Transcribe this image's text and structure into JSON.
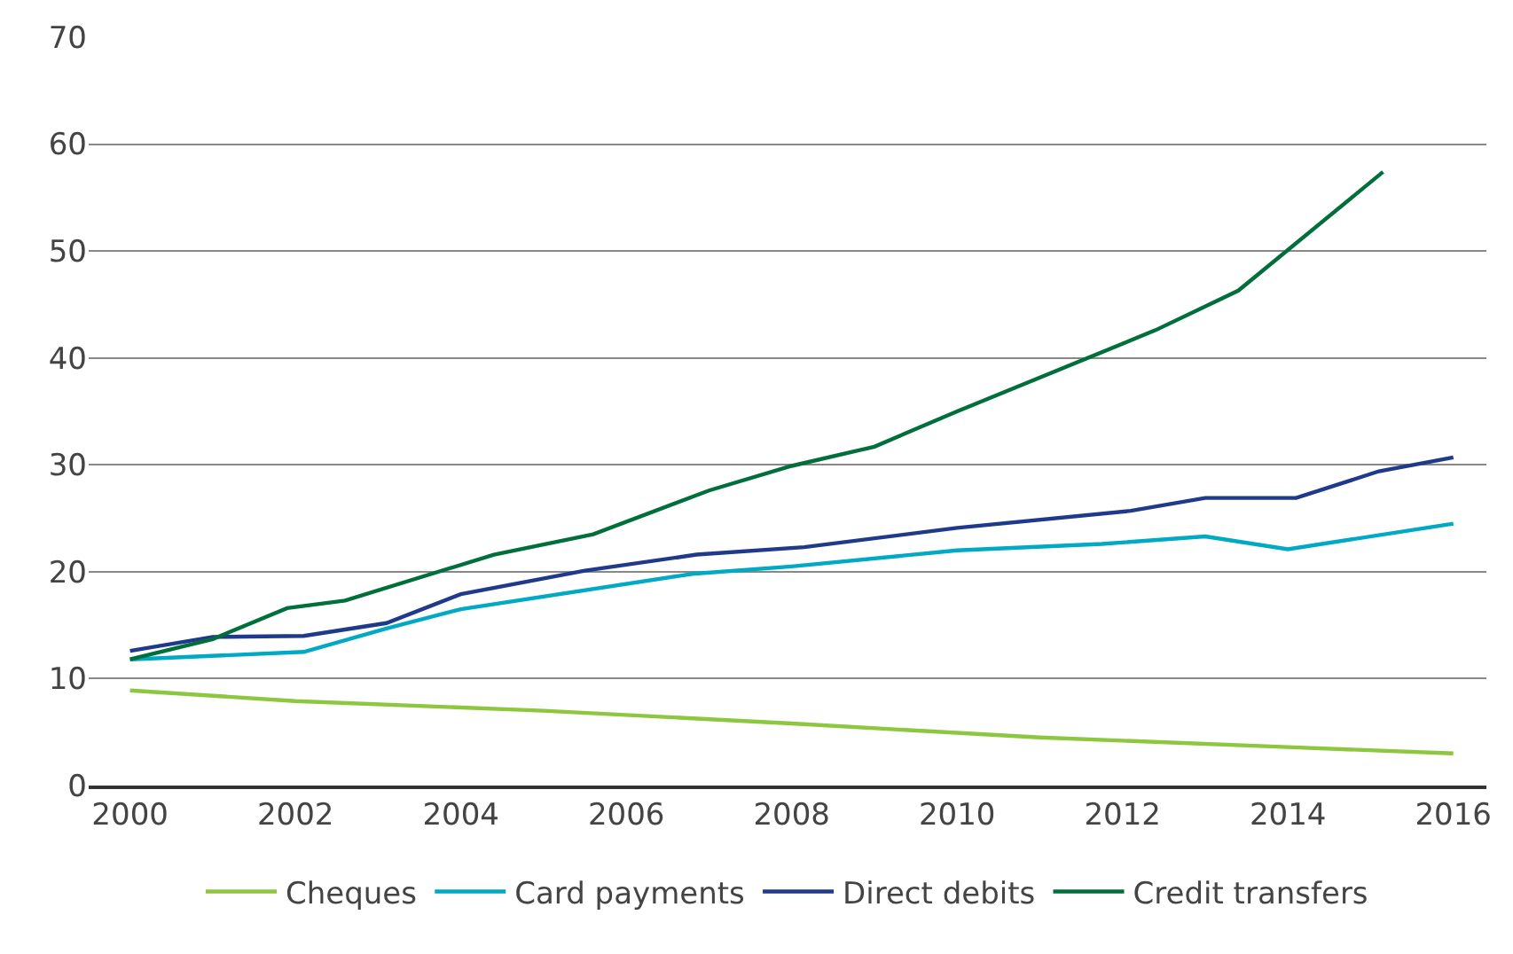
{
  "chart_data": {
    "type": "line",
    "xlim": [
      1999.5,
      2016.4
    ],
    "xticks": [
      2000,
      2002,
      2004,
      2006,
      2008,
      2010,
      2012,
      2014,
      2016
    ],
    "ylim": [
      0,
      70
    ],
    "yticks": [
      0,
      10,
      20,
      30,
      40,
      50,
      60,
      70
    ],
    "grid": "y",
    "legend": "bottom",
    "marker": "none",
    "line_style": "solid",
    "series": [
      {
        "name": "Cheques",
        "color": "#8dc63f",
        "x": [
          2000,
          2002,
          2005,
          2008,
          2011,
          2014,
          2016
        ],
        "values": [
          8.9,
          7.9,
          7.0,
          5.8,
          4.5,
          3.6,
          3.0
        ]
      },
      {
        "name": "Card payments",
        "color": "#00a9c4",
        "x": [
          2000,
          2002.1,
          2003.1,
          2004,
          2006.8,
          2008,
          2010,
          2011.75,
          2013,
          2014,
          2016
        ],
        "values": [
          11.8,
          12.5,
          14.7,
          16.5,
          19.8,
          20.5,
          22.0,
          22.6,
          23.3,
          22.1,
          24.5
        ]
      },
      {
        "name": "Direct debits",
        "color": "#1f3a8a",
        "x": [
          2000,
          2001,
          2002.1,
          2003.1,
          2004,
          2005.5,
          2006.85,
          2008.15,
          2010,
          2012.1,
          2013,
          2014.1,
          2015.1,
          2016
        ],
        "values": [
          12.6,
          13.9,
          14.0,
          15.2,
          17.9,
          20.1,
          21.6,
          22.3,
          24.1,
          25.7,
          26.9,
          26.9,
          29.4,
          30.7
        ]
      },
      {
        "name": "Credit transfers",
        "color": "#006f3c",
        "x": [
          2000,
          2001,
          2001.9,
          2002.6,
          2004.4,
          2005.6,
          2007,
          2008,
          2009,
          2010,
          2012.4,
          2013.4,
          2015.15
        ],
        "values": [
          11.8,
          13.7,
          16.6,
          17.3,
          21.6,
          23.5,
          27.6,
          29.9,
          31.7,
          35.0,
          42.6,
          46.3,
          57.4
        ]
      }
    ]
  }
}
